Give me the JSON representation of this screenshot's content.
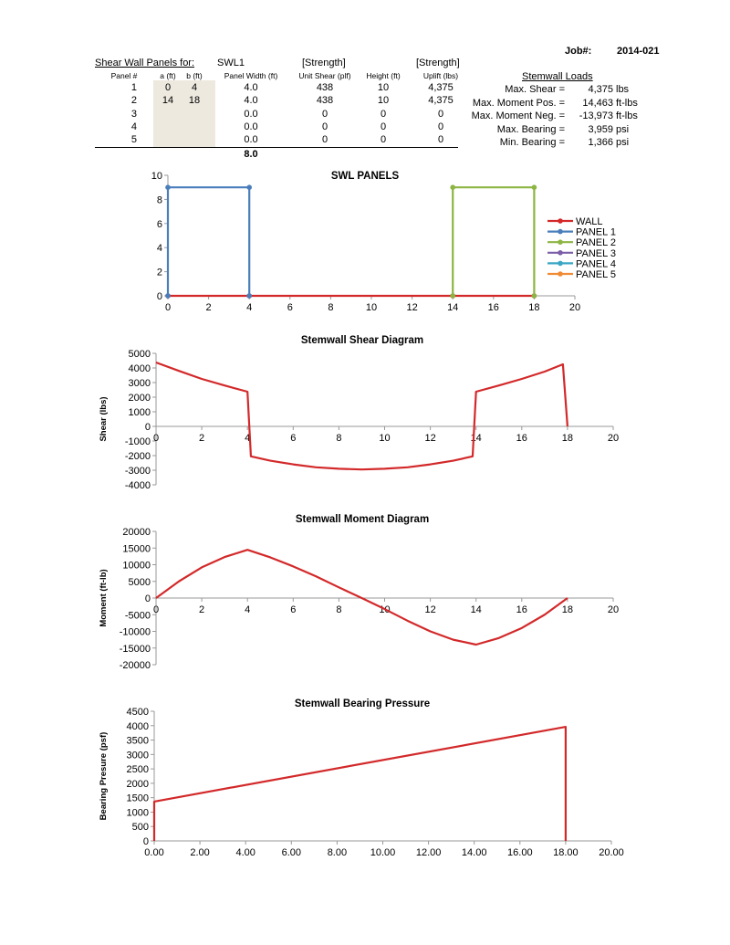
{
  "job": {
    "label": "Job#:",
    "value": "2014-021"
  },
  "panels_table": {
    "title": "Shear Wall Panels for:",
    "wall_id": "SWL1",
    "strength_tags": [
      "[Strength]",
      "[Strength]"
    ],
    "headers": [
      "Panel #",
      "a (ft)",
      "b (ft)",
      "Panel Width (ft)",
      "Unit Shear (plf)",
      "Height (ft)",
      "Uplift (lbs)"
    ],
    "rows": [
      [
        "1",
        "0",
        "4",
        "4.0",
        "438",
        "10",
        "4,375"
      ],
      [
        "2",
        "14",
        "18",
        "4.0",
        "438",
        "10",
        "4,375"
      ],
      [
        "3",
        "",
        "",
        "0.0",
        "0",
        "0",
        "0"
      ],
      [
        "4",
        "",
        "",
        "0.0",
        "0",
        "0",
        "0"
      ],
      [
        "5",
        "",
        "",
        "0.0",
        "0",
        "0",
        "0"
      ]
    ],
    "total_width": "8.0",
    "input_fill": "#ede9df"
  },
  "stemwall_loads": {
    "title": "Stemwall Loads",
    "rows": [
      {
        "label": "Max. Shear =",
        "value": "4,375",
        "unit": "lbs"
      },
      {
        "label": "Max. Moment Pos. =",
        "value": "14,463",
        "unit": "ft-lbs"
      },
      {
        "label": "Max. Moment Neg. =",
        "value": "-13,973",
        "unit": "ft-lbs"
      },
      {
        "label": "Max. Bearing =",
        "value": "3,959",
        "unit": "psi"
      },
      {
        "label": "Min. Bearing =",
        "value": "1,366",
        "unit": "psi"
      }
    ]
  },
  "chart_data": [
    {
      "type": "line",
      "title": "SWL PANELS",
      "xlim": [
        0,
        20
      ],
      "ylim": [
        0,
        10
      ],
      "xticks": [
        "0",
        "2",
        "4",
        "6",
        "8",
        "10",
        "12",
        "14",
        "16",
        "18",
        "20"
      ],
      "yticks": [
        "0",
        "2",
        "4",
        "6",
        "8",
        "10"
      ],
      "legend_position": "right",
      "grid": false,
      "series": [
        {
          "name": "WALL",
          "color": "#d3292a",
          "points": [
            [
              0,
              0
            ],
            [
              4,
              0
            ],
            [
              14,
              0
            ],
            [
              18,
              0
            ]
          ]
        },
        {
          "name": "PANEL 1",
          "color": "#4a7ebb",
          "points": [
            [
              0,
              0
            ],
            [
              0,
              9
            ],
            [
              4,
              9
            ],
            [
              4,
              0
            ]
          ]
        },
        {
          "name": "PANEL 2",
          "color": "#8db543",
          "points": [
            [
              14,
              0
            ],
            [
              14,
              9
            ],
            [
              18,
              9
            ],
            [
              18,
              0
            ]
          ]
        },
        {
          "name": "PANEL 3",
          "color": "#7b5ea7",
          "points": []
        },
        {
          "name": "PANEL 4",
          "color": "#3aa7c4",
          "points": []
        },
        {
          "name": "PANEL 5",
          "color": "#f08a34",
          "points": []
        }
      ]
    },
    {
      "type": "line",
      "title": "Stemwall Shear Diagram",
      "ylabel": "Shear (lbs)",
      "xlim": [
        0,
        20
      ],
      "ylim": [
        -4000,
        5000
      ],
      "xticks": [
        "0",
        "2",
        "4",
        "6",
        "8",
        "10",
        "12",
        "14",
        "16",
        "18",
        "20"
      ],
      "yticks": [
        "-4000",
        "-3000",
        "-2000",
        "-1000",
        "0",
        "1000",
        "2000",
        "3000",
        "4000",
        "5000"
      ],
      "grid": false,
      "series": [
        {
          "color": "#d3292a",
          "points": [
            [
              0,
              4375
            ],
            [
              1,
              3800
            ],
            [
              2,
              3250
            ],
            [
              3,
              2800
            ],
            [
              4,
              2375
            ],
            [
              4.15,
              -2050
            ],
            [
              5,
              -2350
            ],
            [
              6,
              -2600
            ],
            [
              7,
              -2800
            ],
            [
              8,
              -2900
            ],
            [
              9,
              -2950
            ],
            [
              10,
              -2900
            ],
            [
              11,
              -2800
            ],
            [
              12,
              -2600
            ],
            [
              13,
              -2350
            ],
            [
              13.85,
              -2050
            ],
            [
              14,
              2375
            ],
            [
              15,
              2800
            ],
            [
              16,
              3250
            ],
            [
              17,
              3750
            ],
            [
              17.8,
              4250
            ],
            [
              18,
              0
            ]
          ]
        }
      ]
    },
    {
      "type": "line",
      "title": "Stemwall Moment Diagram",
      "ylabel": "Moment (ft-lb)",
      "xlim": [
        0,
        20
      ],
      "ylim": [
        -20000,
        20000
      ],
      "xticks": [
        "0",
        "2",
        "4",
        "6",
        "8",
        "10",
        "12",
        "14",
        "16",
        "18",
        "20"
      ],
      "yticks": [
        "-20000",
        "-15000",
        "-10000",
        "-5000",
        "0",
        "5000",
        "10000",
        "15000",
        "20000"
      ],
      "grid": false,
      "series": [
        {
          "color": "#d3292a",
          "points": [
            [
              0,
              0
            ],
            [
              1,
              5000
            ],
            [
              2,
              9200
            ],
            [
              3,
              12300
            ],
            [
              4,
              14463
            ],
            [
              5,
              12200
            ],
            [
              6,
              9500
            ],
            [
              7,
              6500
            ],
            [
              8,
              3200
            ],
            [
              9,
              0
            ],
            [
              10,
              -3300
            ],
            [
              11,
              -6800
            ],
            [
              12,
              -10000
            ],
            [
              13,
              -12500
            ],
            [
              14,
              -13973
            ],
            [
              15,
              -12000
            ],
            [
              16,
              -9000
            ],
            [
              17,
              -5000
            ],
            [
              18,
              0
            ]
          ]
        }
      ]
    },
    {
      "type": "line",
      "title": "Stemwall Bearing Pressure",
      "ylabel": "Bearing Presure (psf)",
      "xlim": [
        0,
        20
      ],
      "ylim": [
        0,
        4500
      ],
      "xticks": [
        "0.00",
        "2.00",
        "4.00",
        "6.00",
        "8.00",
        "10.00",
        "12.00",
        "14.00",
        "16.00",
        "18.00",
        "20.00"
      ],
      "yticks": [
        "0",
        "500",
        "1000",
        "1500",
        "2000",
        "2500",
        "3000",
        "3500",
        "4000",
        "4500"
      ],
      "grid": false,
      "series": [
        {
          "color": "#d3292a",
          "points": [
            [
              0,
              0
            ],
            [
              0,
              1366
            ],
            [
              18,
              3959
            ],
            [
              18,
              0
            ]
          ]
        }
      ]
    }
  ]
}
